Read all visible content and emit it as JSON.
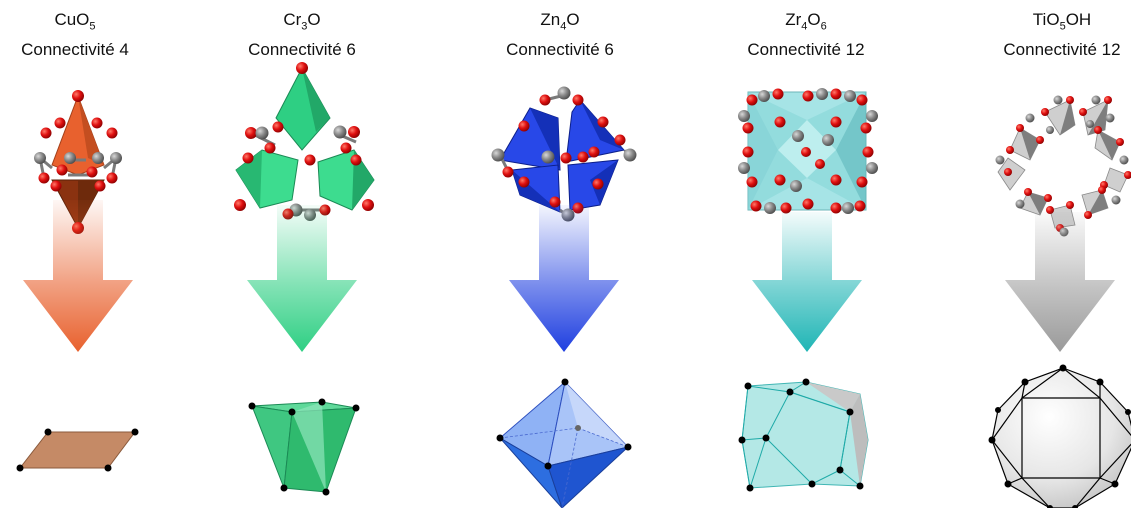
{
  "columns": [
    {
      "formula_parts": [
        {
          "t": "CuO"
        },
        {
          "sub": "5"
        }
      ],
      "connectivity": "Connectivité 4",
      "color": "#e8612e",
      "shape": "square"
    },
    {
      "formula_parts": [
        {
          "t": "Cr"
        },
        {
          "sub": "3"
        },
        {
          "t": "O"
        }
      ],
      "connectivity": "Connectivité 6",
      "color": "#2ecf83",
      "shape": "trigonal-prism"
    },
    {
      "formula_parts": [
        {
          "t": "Zn"
        },
        {
          "sub": "4"
        },
        {
          "t": "O"
        }
      ],
      "connectivity": "Connectivité 6",
      "color": "#1f3fe0",
      "shape": "octahedron"
    },
    {
      "formula_parts": [
        {
          "t": "Zr"
        },
        {
          "sub": "4"
        },
        {
          "t": "O"
        },
        {
          "sub": "6"
        }
      ],
      "connectivity": "Connectivité 12",
      "color": "#1fb5b5",
      "shape": "cuboctahedron"
    },
    {
      "formula_parts": [
        {
          "t": "TiO"
        },
        {
          "sub": "5"
        },
        {
          "t": "OH"
        }
      ],
      "connectivity": "Connectivité 12",
      "color": "#9a9a9a",
      "shape": "cuboctahedron-gray"
    }
  ],
  "atom_colors": {
    "oxygen": "#e01010",
    "carbon": "#8a8a8a"
  }
}
